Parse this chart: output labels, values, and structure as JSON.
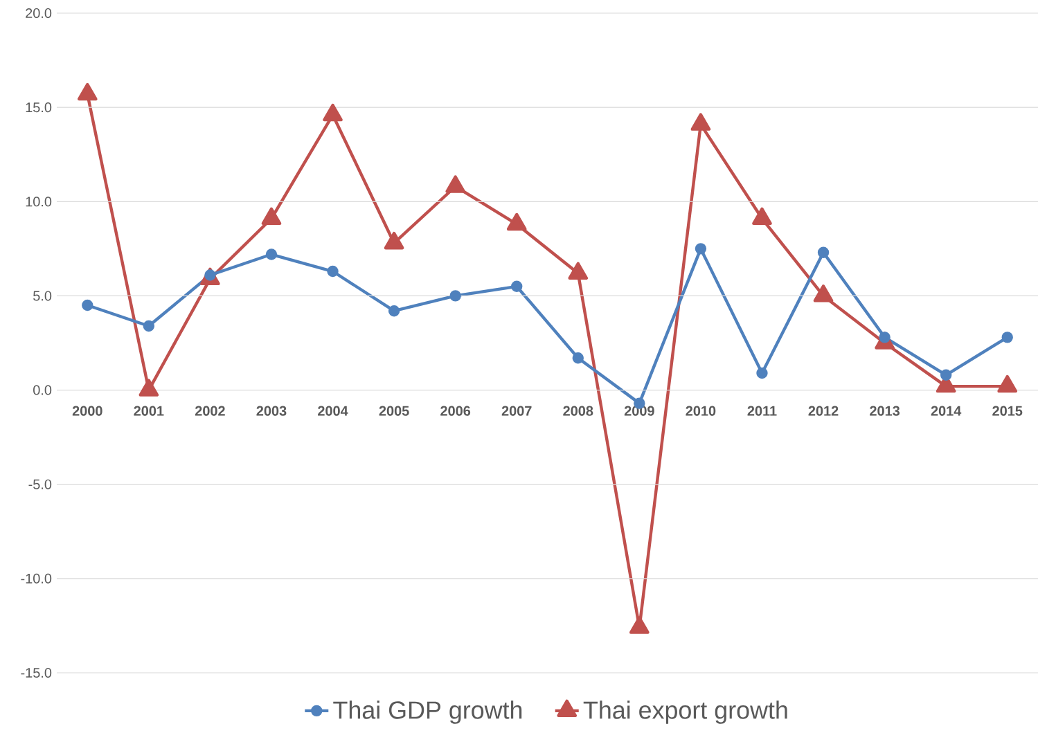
{
  "chart_data": {
    "type": "line",
    "categories": [
      "2000",
      "2001",
      "2002",
      "2003",
      "2004",
      "2005",
      "2006",
      "2007",
      "2008",
      "2009",
      "2010",
      "2011",
      "2012",
      "2013",
      "2014",
      "2015"
    ],
    "series": [
      {
        "name": "Thai GDP growth",
        "color": "#4f81bd",
        "marker": "circle",
        "values": [
          4.5,
          3.4,
          6.1,
          7.2,
          6.3,
          4.2,
          5.0,
          5.5,
          1.7,
          -0.7,
          7.5,
          0.9,
          7.3,
          2.8,
          0.8,
          2.8
        ]
      },
      {
        "name": "Thai export growth",
        "color": "#c0504d",
        "marker": "triangle",
        "values": [
          15.7,
          0.0,
          5.9,
          9.1,
          14.6,
          7.8,
          10.8,
          8.8,
          6.2,
          -12.6,
          14.1,
          9.1,
          5.0,
          2.5,
          0.2,
          0.2
        ]
      }
    ],
    "ylim": [
      -15,
      20
    ],
    "yticks": [
      {
        "value": -15,
        "label": "-15.0"
      },
      {
        "value": -10,
        "label": "-10.0"
      },
      {
        "value": -5,
        "label": "-5.0"
      },
      {
        "value": 0,
        "label": "0.0"
      },
      {
        "value": 5,
        "label": "5.0"
      },
      {
        "value": 10,
        "label": "10.0"
      },
      {
        "value": 15,
        "label": "15.0"
      },
      {
        "value": 20,
        "label": "20.0"
      }
    ],
    "grid": "y",
    "legend": "bottom",
    "line_style": "solid"
  }
}
